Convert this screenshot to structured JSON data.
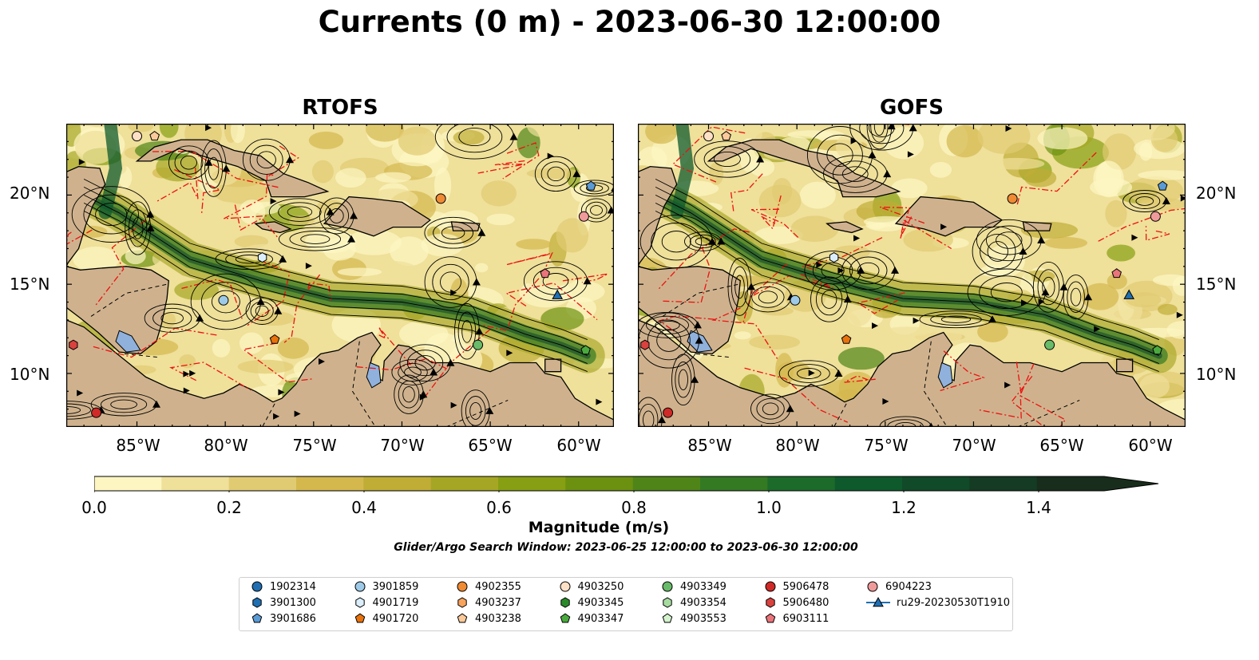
{
  "title": "Currents (0 m) - 2023-06-30 12:00:00",
  "panels": [
    {
      "title": "RTOFS",
      "seed": 3
    },
    {
      "title": "GOFS",
      "seed": 11
    }
  ],
  "lat_labels": [
    "20°N",
    "15°N",
    "10°N"
  ],
  "lon_labels": [
    "85°W",
    "80°W",
    "75°W",
    "70°W",
    "65°W",
    "60°W"
  ],
  "colorbar": {
    "ticks": [
      "0.0",
      "0.2",
      "0.4",
      "0.6",
      "0.8",
      "1.0",
      "1.2",
      "1.4"
    ],
    "range": [
      0,
      1.5
    ],
    "colors": [
      "#fdf6c3",
      "#efe09a",
      "#e1cb72",
      "#d4b84e",
      "#c0ad36",
      "#a6a625",
      "#879f12",
      "#6c9110",
      "#4f8518",
      "#347a23",
      "#1d6b2a",
      "#0f5a2c",
      "#104a29",
      "#153b24",
      "#182d1c"
    ],
    "label": "Magnitude (m/s)"
  },
  "search_window": "Glider/Argo Search Window: 2023-06-25 12:00:00 to 2023-06-30 12:00:00",
  "land_color": "#cfb28d",
  "lake_color": "#8fb1dc",
  "legend": [
    {
      "id": "1902314",
      "color": "#1f6fb2",
      "shape": "circle"
    },
    {
      "id": "3901300",
      "color": "#1f6fb2",
      "shape": "hexagon"
    },
    {
      "id": "3901686",
      "color": "#5b9bd5",
      "shape": "pentagon"
    },
    {
      "id": "3901859",
      "color": "#9ecae8",
      "shape": "circle"
    },
    {
      "id": "4901719",
      "color": "#dbeefa",
      "shape": "hexagon"
    },
    {
      "id": "4901720",
      "color": "#e8720c",
      "shape": "pentagon"
    },
    {
      "id": "4902355",
      "color": "#f08a33",
      "shape": "circle"
    },
    {
      "id": "4903237",
      "color": "#f7a35c",
      "shape": "hexagon"
    },
    {
      "id": "4903238",
      "color": "#fbc99a",
      "shape": "pentagon"
    },
    {
      "id": "4903250",
      "color": "#fde0c5",
      "shape": "circle"
    },
    {
      "id": "4903345",
      "color": "#2a8a2a",
      "shape": "hexagon"
    },
    {
      "id": "4903347",
      "color": "#4aaa3e",
      "shape": "pentagon"
    },
    {
      "id": "4903349",
      "color": "#68bb68",
      "shape": "circle"
    },
    {
      "id": "4903354",
      "color": "#a6dca0",
      "shape": "hexagon"
    },
    {
      "id": "4903553",
      "color": "#d4f3cd",
      "shape": "pentagon"
    },
    {
      "id": "5906478",
      "color": "#cf2a27",
      "shape": "circle"
    },
    {
      "id": "5906480",
      "color": "#d9423f",
      "shape": "hexagon"
    },
    {
      "id": "6903111",
      "color": "#e9747a",
      "shape": "pentagon"
    },
    {
      "id": "6904223",
      "color": "#f09b9b",
      "shape": "circle"
    },
    {
      "id": "ru29-20230530T1910",
      "color": "#1f6fb2",
      "shape": "triangle"
    }
  ],
  "markers": [
    {
      "id": "4903250",
      "lon": -85.0,
      "lat": 23.3
    },
    {
      "id": "4903238",
      "lon": -84.0,
      "lat": 23.3
    },
    {
      "id": "3901686",
      "lon": -59.3,
      "lat": 20.5
    },
    {
      "id": "4902355",
      "lon": -67.8,
      "lat": 19.8
    },
    {
      "id": "6904223",
      "lon": -59.7,
      "lat": 18.8
    },
    {
      "id": "4901719",
      "lon": -77.9,
      "lat": 16.5
    },
    {
      "id": "6903111",
      "lon": -61.9,
      "lat": 15.6
    },
    {
      "id": "ru29-20230530T1910",
      "lon": -61.2,
      "lat": 14.4
    },
    {
      "id": "3901859",
      "lon": -80.1,
      "lat": 14.1
    },
    {
      "id": "4901720",
      "lon": -77.2,
      "lat": 11.9
    },
    {
      "id": "4903349",
      "lon": -65.7,
      "lat": 11.6
    },
    {
      "id": "4903347",
      "lon": -59.6,
      "lat": 11.3
    },
    {
      "id": "5906480",
      "lon": -88.6,
      "lat": 11.6
    },
    {
      "id": "5906478",
      "lon": -87.3,
      "lat": 7.8
    }
  ]
}
